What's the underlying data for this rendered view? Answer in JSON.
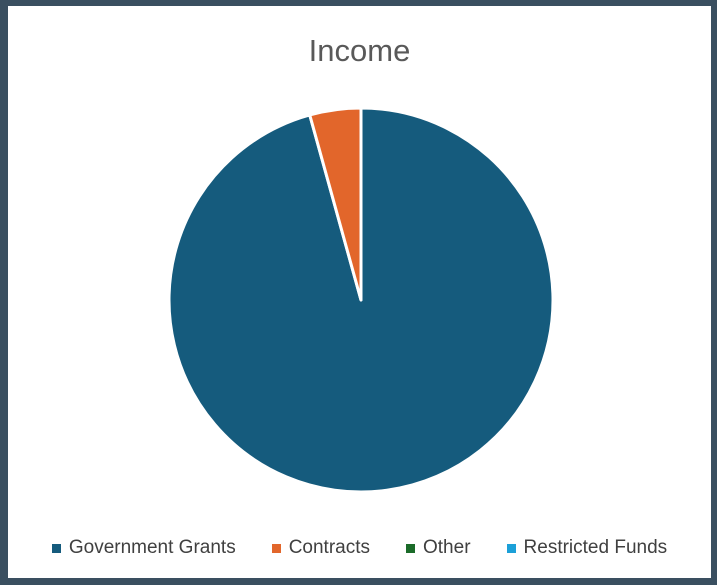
{
  "chart_data": {
    "type": "pie",
    "title": "Income",
    "categories": [
      "Government Grants",
      "Contracts",
      "Other",
      "Restricted Funds"
    ],
    "values": [
      95.7,
      4.3,
      0,
      0
    ],
    "colors": [
      "#155b7d",
      "#e2662b",
      "#1b6b29",
      "#1ca0d8"
    ],
    "legend_position": "bottom"
  }
}
